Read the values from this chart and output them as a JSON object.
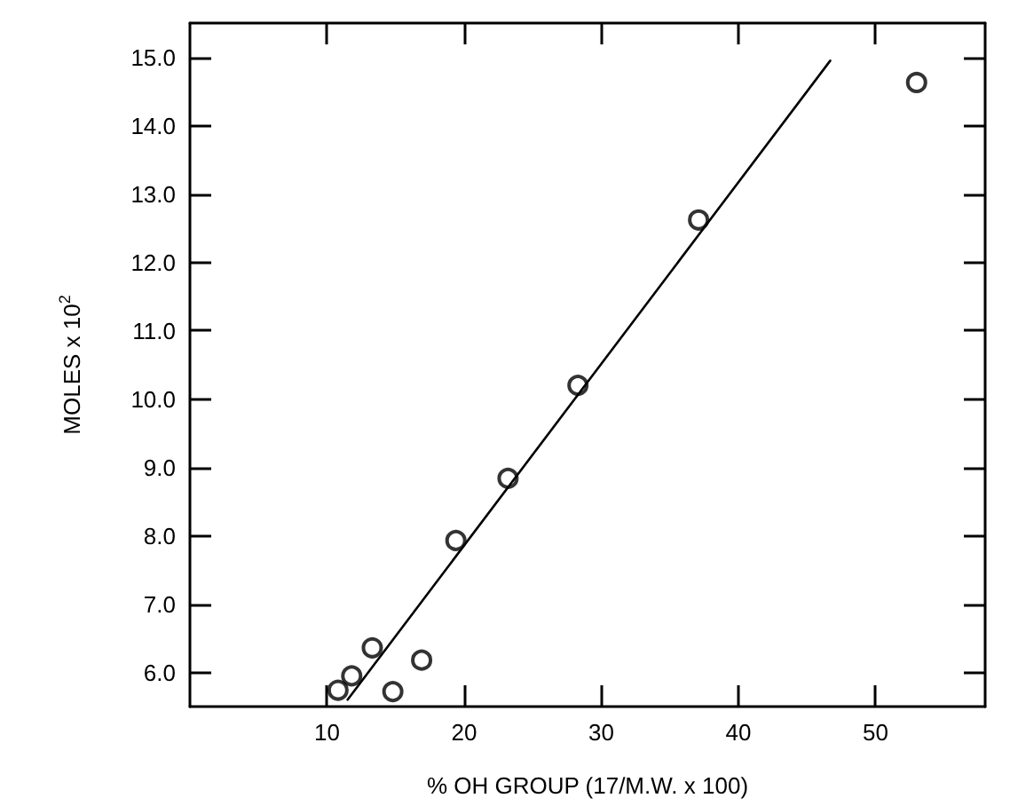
{
  "chart_data": {
    "type": "scatter",
    "xlabel": "% OH GROUP (17/M.W. x 100)",
    "ylabel": "MOLES x 10$^{2}$",
    "xlim": [
      0,
      58
    ],
    "xticks": [
      10,
      20,
      30,
      40,
      50
    ],
    "ylim": [
      5.5,
      15.5
    ],
    "yticks": [
      {
        "value": 6,
        "label": "6.0"
      },
      {
        "value": 7,
        "label": "7.0"
      },
      {
        "value": 8,
        "label": "8.0"
      },
      {
        "value": 9,
        "label": "9.0"
      },
      {
        "value": 10,
        "label": "10.0"
      },
      {
        "value": 11,
        "label": "11.0"
      },
      {
        "value": 12,
        "label": "12.0"
      },
      {
        "value": 13,
        "label": "13.0"
      },
      {
        "value": 14,
        "label": "14.0"
      },
      {
        "value": 15,
        "label": "15.0"
      }
    ],
    "grid": false,
    "series": [
      {
        "color": "#000000",
        "marker": "circle",
        "x": [
          10.8,
          11.8,
          13.3,
          14.8,
          16.9,
          19.4,
          23.2,
          28.3,
          37.1,
          53.0
        ],
        "values": [
          5.74,
          5.95,
          6.36,
          5.72,
          6.18,
          7.93,
          8.84,
          10.2,
          12.62,
          14.63
        ]
      },
      {
        "type": "line",
        "color": "#000000",
        "marker": "none",
        "line_style": "solid",
        "x": [
          11.5,
          46.7
        ],
        "values": [
          5.6,
          14.95
        ]
      }
    ]
  }
}
